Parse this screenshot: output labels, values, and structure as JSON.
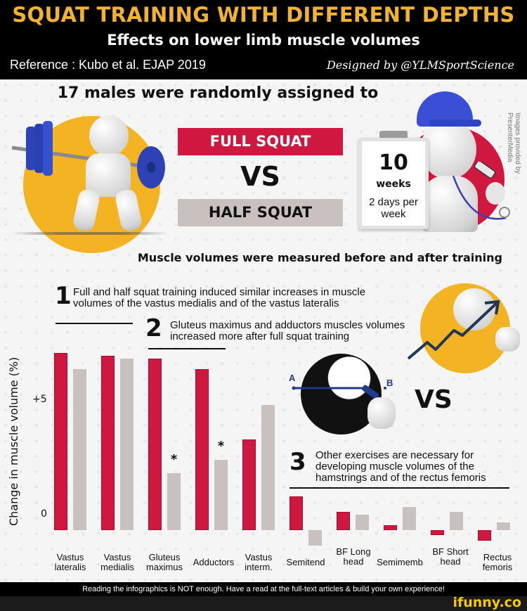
{
  "header": {
    "title": "SQUAT TRAINING WITH DIFFERENT DEPTHS",
    "subtitle": "Effects on lower limb muscle volumes",
    "reference": "Reference : Kubo et al. EJAP 2019",
    "designer": "Designed by @YLMSportScience"
  },
  "study": {
    "intro": "17 males were randomly assigned to",
    "group_full": "FULL SQUAT",
    "vs": "VS",
    "group_half": "HALF SQUAT",
    "duration_number": "10",
    "duration_unit": "weeks",
    "frequency": "2 days per week",
    "credit": "Images provided by PresenterMedia",
    "measured": "Muscle volumes were measured before and after training"
  },
  "findings": [
    {
      "number": "1",
      "text": "Full and half squat training induced similar increases in muscle volumes of the vastus medialis and of the vastus lateralis"
    },
    {
      "number": "2",
      "text": "Gluteus maximus and adductors muscles volumes increased more after full squat training"
    },
    {
      "number": "3",
      "text": "Other exercises are necessary for developing muscle volumes of the hamstrings and of the rectus femoris"
    }
  ],
  "vs_small": "VS",
  "illustration_labels": {
    "a": "A",
    "b": "B"
  },
  "footer": {
    "banner": "Reading the infographics is NOT enough. Have a read at the full-text articles & build your own experience!",
    "watermark": "ifunny.co"
  },
  "colors": {
    "full_squat": "#cf173f",
    "half_squat": "#c8c1c0",
    "title_gold": "#f2b233",
    "accent_yellow": "#f4b323"
  },
  "chart_data": {
    "type": "bar",
    "title": "",
    "xlabel": "",
    "ylabel": "Change in muscle volume (%)",
    "yticks": [
      {
        "value": 0,
        "label": "0"
      },
      {
        "value": 5,
        "label": "+5"
      }
    ],
    "ylim": [
      -1,
      7
    ],
    "grid": false,
    "legend": "none (colors match FULL SQUAT red and HALF SQUAT grey boxes)",
    "categories": [
      "Vastus lateralis",
      "Vastus medialis",
      "Gluteus maximus",
      "Adductors",
      "Vastus interm.",
      "Semitend",
      "BF Long head",
      "Semimemb",
      "BF Short head",
      "Rectus femoris"
    ],
    "series": [
      {
        "name": "Full squat",
        "color": "#cf173f",
        "values": [
          6.8,
          6.7,
          6.6,
          6.2,
          3.5,
          1.3,
          0.7,
          0.2,
          -0.2,
          -0.4
        ]
      },
      {
        "name": "Half squat",
        "color": "#c8c1c0",
        "values": [
          6.2,
          6.6,
          2.2,
          2.7,
          4.8,
          -0.6,
          0.6,
          0.9,
          0.7,
          0.3
        ]
      }
    ],
    "annotations": [
      {
        "category": "Gluteus maximus",
        "series": "Half squat",
        "text": "*"
      },
      {
        "category": "Adductors",
        "series": "Half squat",
        "text": "*"
      }
    ]
  }
}
